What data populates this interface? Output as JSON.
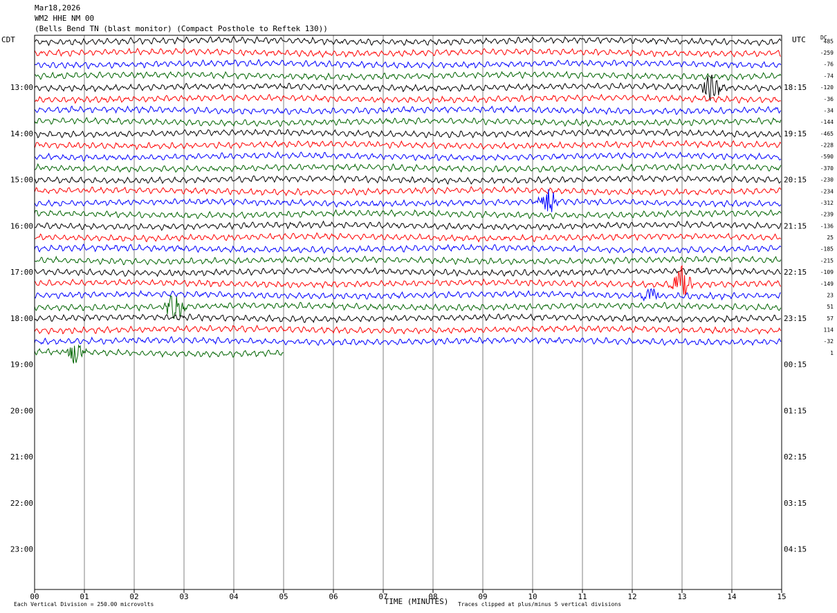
{
  "header": {
    "date": "Mar18,2026",
    "station": "WM2 HHE NM 00",
    "description": "(Bells Bend TN (blast monitor) (Compact Posthole to Reftek 130))"
  },
  "chart_data": {
    "type": "line",
    "title": "",
    "xlabel": "TIME (MINUTES)",
    "xlim": [
      0,
      15
    ],
    "x_ticks": [
      "00",
      "01",
      "02",
      "03",
      "04",
      "05",
      "06",
      "07",
      "08",
      "09",
      "10",
      "11",
      "12",
      "13",
      "14",
      "15"
    ],
    "left_axis_label": "CDT",
    "right_axis_label": "UTC",
    "dc_label": "DC",
    "left_hour_labels": [
      "13:00",
      "14:00",
      "15:00",
      "16:00",
      "17:00",
      "18:00",
      "19:00",
      "20:00",
      "21:00",
      "22:00",
      "23:00"
    ],
    "right_hour_labels": [
      "18:15",
      "19:15",
      "20:15",
      "21:15",
      "22:15",
      "23:15",
      "00:15",
      "01:15",
      "02:15",
      "03:15",
      "04:15"
    ],
    "rows_per_hour": 4,
    "total_rows": 48,
    "trace_color_cycle": [
      "#000000",
      "#ff0000",
      "#0000ff",
      "#006400"
    ],
    "trace_count": 28,
    "last_trace_minutes": 5.0,
    "dc_offsets": [
      "485",
      "-259",
      "-76",
      "-74",
      "-120",
      "-36",
      "-34",
      "-144",
      "-465",
      "-228",
      "-590",
      "-370",
      "-230",
      "-234",
      "-312",
      "-239",
      "-136",
      "25",
      "-185",
      "-215",
      "-109",
      "-149",
      "23",
      "51",
      "57",
      "114",
      "-32",
      "1"
    ],
    "events": [
      {
        "trace": 4,
        "minute": 13.6,
        "amplitude": 2.2
      },
      {
        "trace": 14,
        "minute": 10.3,
        "amplitude": 1.8
      },
      {
        "trace": 21,
        "minute": 13.0,
        "amplitude": 2.8
      },
      {
        "trace": 22,
        "minute": 12.4,
        "amplitude": 1.4
      },
      {
        "trace": 23,
        "minute": 2.8,
        "amplitude": 2.6
      },
      {
        "trace": 27,
        "minute": 0.8,
        "amplitude": 1.6
      }
    ],
    "footer_left": "Each Vertical Division =  250.00 microvolts",
    "footer_right": "Traces clipped at plus/minus 5 vertical divisions",
    "grid": true
  }
}
